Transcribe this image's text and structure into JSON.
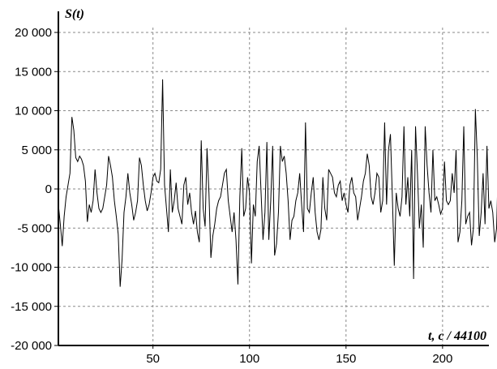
{
  "chart_data": {
    "type": "line",
    "title": "",
    "ylabel": "S(t)",
    "xlabel": "t, c / 44100",
    "xlim": [
      1,
      224
    ],
    "ylim": [
      -20000,
      20000
    ],
    "x_ticks": [
      50,
      100,
      150,
      200
    ],
    "y_ticks": [
      -20000,
      -15000,
      -10000,
      -5000,
      0,
      5000,
      10000,
      15000,
      20000
    ],
    "y_tick_labels": [
      "-20 000",
      "-15 000",
      "-10 000",
      "-5 000",
      "0",
      "5 000",
      "10 000",
      "15 000",
      "20 000"
    ],
    "grid": true,
    "series": [
      {
        "color": "#000000",
        "x_start": 1,
        "x_step": 1,
        "values": [
          -2000,
          -4500,
          -7300,
          -3500,
          -1000,
          500,
          2000,
          9200,
          7500,
          4000,
          3500,
          4200,
          3800,
          3000,
          1000,
          -4200,
          -2000,
          -3000,
          -1500,
          2500,
          -500,
          -2500,
          -3000,
          -2500,
          -1000,
          500,
          4200,
          3000,
          1500,
          -1500,
          -3500,
          -5800,
          -12500,
          -9000,
          -3000,
          -1000,
          2000,
          -500,
          -2000,
          -4000,
          -3000,
          -1500,
          4000,
          3000,
          500,
          -1500,
          -2800,
          -2000,
          -500,
          1500,
          2000,
          1000,
          800,
          2500,
          14000,
          500,
          -2500,
          -5500,
          2500,
          -3000,
          -1500,
          800,
          -2500,
          -3500,
          -4500,
          500,
          1500,
          -2000,
          -500,
          -3000,
          -4500,
          -2800,
          -5500,
          -6800,
          6200,
          -2500,
          -4800,
          5200,
          -500,
          -8800,
          -6000,
          -4500,
          -2500,
          -1500,
          -1000,
          500,
          2000,
          2500,
          -1500,
          -3500,
          -5500,
          -3000,
          -6500,
          -12200,
          -1000,
          5200,
          -3500,
          -2500,
          1500,
          -500,
          -9500,
          -2000,
          -3500,
          3500,
          5500,
          -500,
          -6500,
          -3000,
          6000,
          -6500,
          -1500,
          5500,
          -8500,
          -7000,
          -3000,
          5500,
          3500,
          4200,
          2000,
          -1500,
          -6500,
          -4000,
          -3500,
          -1500,
          -500,
          2000,
          -2000,
          -5500,
          8500,
          -2500,
          -3000,
          -500,
          1500,
          -3000,
          -5500,
          -6500,
          -5200,
          1500,
          -2500,
          -4000,
          2500,
          2000,
          1500,
          -500,
          -1000,
          500,
          1000,
          -1500,
          -500,
          -2000,
          -3000,
          500,
          1500,
          -500,
          -1000,
          -4000,
          -2500,
          -1000,
          1000,
          2000,
          4500,
          3000,
          -1000,
          -2000,
          -500,
          2000,
          1500,
          -3000,
          -1500,
          8500,
          -2000,
          5000,
          7000,
          -1000,
          -9800,
          -500,
          -2500,
          -3500,
          -1000,
          8000,
          -2000,
          1500,
          -3500,
          5000,
          -11500,
          8000,
          2000,
          -5000,
          -2000,
          -7500,
          8000,
          3000,
          -500,
          -3000,
          5000,
          -1500,
          -1000,
          -2000,
          -3200,
          -2500,
          3500,
          -1500,
          -2000,
          -1500,
          2000,
          -500,
          5000,
          -6800,
          -5500,
          -1500,
          8000,
          -4500,
          -3500,
          -3000,
          -7200,
          -5000,
          10200,
          4000,
          -6000,
          -3000,
          2000,
          -4500,
          5500,
          -2500,
          -1500,
          -3000,
          -6800,
          -5000,
          4800
        ]
      }
    ]
  }
}
